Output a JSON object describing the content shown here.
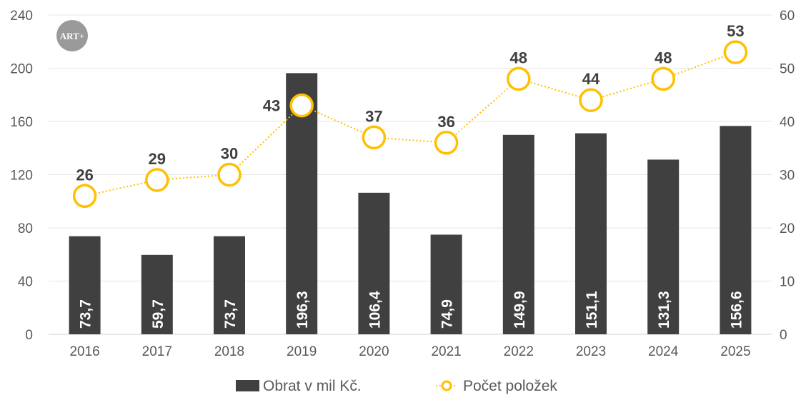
{
  "logo": {
    "text": "ART+",
    "color": "#9a9a9a"
  },
  "chart_data": {
    "type": "bar+line",
    "categories": [
      "2016",
      "2017",
      "2018",
      "2019",
      "2020",
      "2021",
      "2022",
      "2023",
      "2024",
      "2025"
    ],
    "series": [
      {
        "name": "Obrat v mil Kč.",
        "type": "bar",
        "axis": "left",
        "color": "#404040",
        "values": [
          73.7,
          59.7,
          73.7,
          196.3,
          106.4,
          74.9,
          149.9,
          151.1,
          131.3,
          156.6
        ],
        "labels": [
          "73,7",
          "59,7",
          "73,7",
          "196,3",
          "106,4",
          "74,9",
          "149,9",
          "151,1",
          "131,3",
          "156,6"
        ]
      },
      {
        "name": "Počet položek",
        "type": "line",
        "axis": "right",
        "color": "#FFC000",
        "line_style": "dotted",
        "marker": "open-circle",
        "values": [
          26,
          29,
          30,
          43,
          37,
          36,
          48,
          44,
          48,
          53
        ],
        "labels": [
          "26",
          "29",
          "30",
          "43",
          "37",
          "36",
          "48",
          "44",
          "48",
          "53"
        ]
      }
    ],
    "y_left": {
      "range": [
        0,
        240
      ],
      "ticks": [
        "0",
        "40",
        "80",
        "120",
        "160",
        "200",
        "240"
      ]
    },
    "y_right": {
      "range": [
        0,
        60
      ],
      "ticks": [
        "0",
        "10",
        "20",
        "30",
        "40",
        "50",
        "60"
      ]
    },
    "grid": true,
    "legend": "bottom"
  }
}
